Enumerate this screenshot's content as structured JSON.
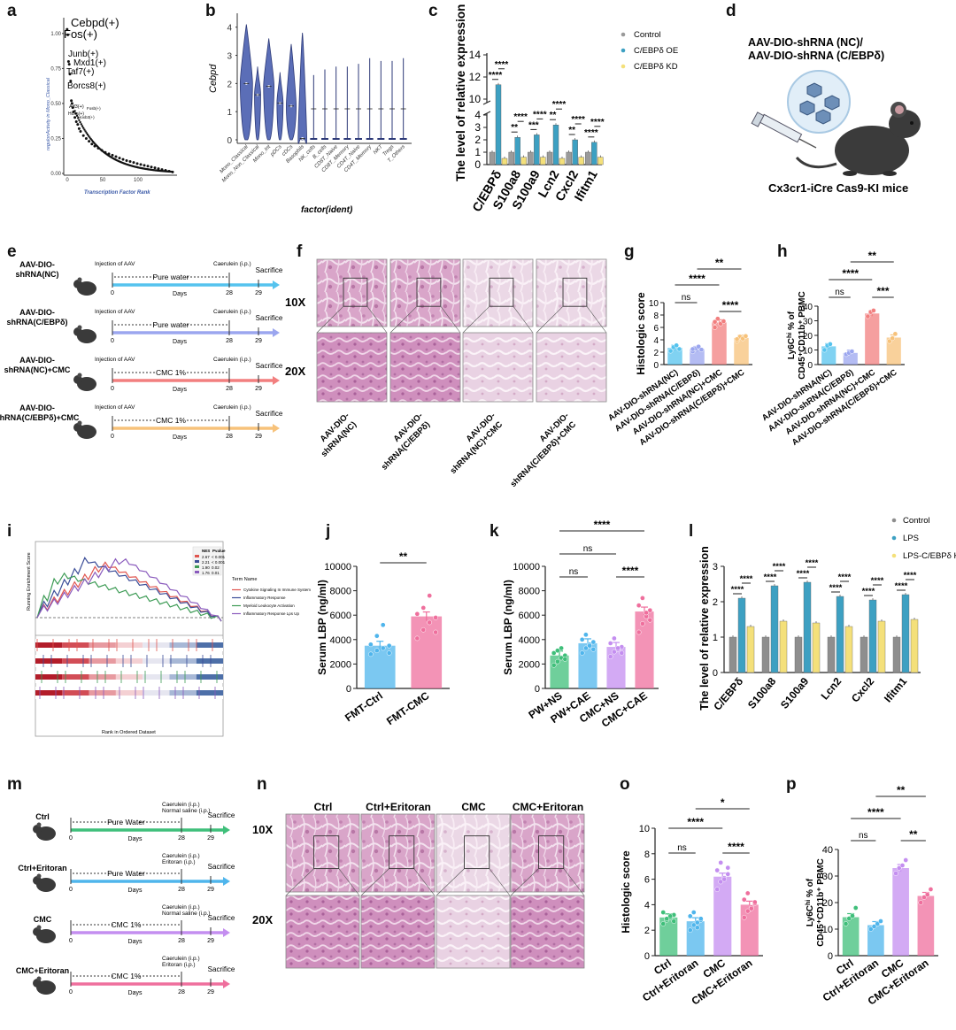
{
  "colors": {
    "nc": "#55c3ee",
    "ko": "#9ba6ef",
    "nc_cmc": "#f27f7f",
    "ko_cmc": "#f7c27a",
    "ctrl_green": "#3fbf7a",
    "purple": "#c48ef0",
    "pink": "#ef6f9d",
    "blue": "#4fb5ec",
    "grey": "#9a9a9a",
    "teal": "#3da0c2",
    "yellow": "#f4e07a",
    "navy": "#3b4d98"
  },
  "panels": {
    "a": "a",
    "b": "b",
    "c": "c",
    "d": "d",
    "e": "e",
    "f": "f",
    "g": "g",
    "h": "h",
    "i": "i",
    "j": "j",
    "k": "k",
    "l": "l",
    "m": "m",
    "n": "n",
    "o": "o",
    "p": "p"
  },
  "a": {
    "ylabel": "regulonActivity in Mono_Classical",
    "xlabel": "Transcription Factor Rank",
    "yticks": [
      "0.00",
      "0.25",
      "0.50",
      "0.75",
      "1.00"
    ],
    "xticks": [
      "0",
      "50",
      "100"
    ],
    "labels": [
      "Cebpd(+)",
      "Fos(+)",
      "Junb(+)",
      "Mxd1(+)",
      "Taf7(+)",
      "Borcs8(+)"
    ],
    "small_labels": [
      "Atf3(+)",
      "Fosb(+)",
      "Hoxa(+)",
      "Hoxb3(+)"
    ],
    "chart_data": {
      "type": "scatter",
      "title": "",
      "xlabel": "Transcription Factor Rank",
      "ylabel": "regulonActivity in Mono_Classical",
      "xlim": [
        0,
        160
      ],
      "ylim": [
        0,
        1.1
      ],
      "points": [
        [
          1,
          1.03
        ],
        [
          2,
          0.99
        ],
        [
          3,
          0.8
        ],
        [
          4,
          0.78
        ],
        [
          5,
          0.71
        ],
        [
          6,
          0.66
        ],
        [
          7,
          0.52
        ],
        [
          8,
          0.5
        ],
        [
          9,
          0.47
        ],
        [
          10,
          0.44
        ],
        [
          12,
          0.4
        ],
        [
          14,
          0.37
        ],
        [
          16,
          0.35
        ],
        [
          18,
          0.32
        ],
        [
          20,
          0.3
        ],
        [
          24,
          0.27
        ],
        [
          28,
          0.25
        ],
        [
          32,
          0.23
        ],
        [
          36,
          0.21
        ],
        [
          40,
          0.195
        ],
        [
          45,
          0.18
        ],
        [
          50,
          0.165
        ],
        [
          55,
          0.15
        ],
        [
          60,
          0.14
        ],
        [
          65,
          0.13
        ],
        [
          70,
          0.12
        ],
        [
          75,
          0.11
        ],
        [
          80,
          0.1
        ],
        [
          85,
          0.092
        ],
        [
          90,
          0.085
        ],
        [
          95,
          0.078
        ],
        [
          100,
          0.07
        ],
        [
          105,
          0.064
        ],
        [
          110,
          0.058
        ],
        [
          115,
          0.052
        ],
        [
          120,
          0.046
        ],
        [
          125,
          0.04
        ],
        [
          130,
          0.034
        ],
        [
          135,
          0.028
        ],
        [
          140,
          0.022
        ],
        [
          145,
          0.016
        ],
        [
          150,
          0.01
        ]
      ]
    }
  },
  "b": {
    "ylabel": "Cebpd",
    "xlabel": "factor(ident)",
    "yticks": [
      "0",
      "1",
      "2",
      "3",
      "4"
    ],
    "categories": [
      "Mono_Classical",
      "Mono_Non_Classical",
      "Mono_Int",
      "pDCs",
      "cDCs",
      "Basophils",
      "NK_cells",
      "B_cells",
      "CD8T_Naive",
      "CD8T_Memory",
      "CD4T_Naive",
      "CD4T_Memory",
      "NKT",
      "Tregs",
      "T_Others"
    ],
    "chart_data": {
      "type": "violin",
      "title": "",
      "xlabel": "factor(ident)",
      "ylabel": "Cebpd",
      "ylim": [
        0,
        4.4
      ],
      "categories": [
        "Mono_Classical",
        "Mono_Non_Classical",
        "Mono_Int",
        "pDCs",
        "cDCs",
        "Basophils",
        "NK_cells",
        "B_cells",
        "CD8T_Naive",
        "CD8T_Memory",
        "CD4T_Naive",
        "CD4T_Memory",
        "NKT",
        "Tregs",
        "T_Others"
      ],
      "max": [
        4.1,
        2.6,
        3.6,
        2.4,
        3.4,
        3.8,
        2.3,
        2.5,
        2.6,
        2.6,
        2.7,
        2.9,
        2.8,
        2.8,
        2.9
      ],
      "median": [
        2.0,
        1.6,
        1.9,
        1.3,
        1.2,
        0.05,
        0,
        0,
        0,
        0,
        0,
        0,
        0,
        0,
        0
      ],
      "width": [
        1,
        0.5,
        0.85,
        0.5,
        0.8,
        0.7,
        0.15,
        0.12,
        0.1,
        0.1,
        0.1,
        0.1,
        0.1,
        0.1,
        0.1
      ]
    }
  },
  "c": {
    "ylabel": "The level of relative expression",
    "legend": [
      "Control",
      "C/EBPδ OE",
      "C/EBPδ KD"
    ],
    "categories": [
      "C/EBPδ",
      "S100a8",
      "S100a9",
      "Lcn2",
      "Cxcl2",
      "Ifitm1"
    ],
    "yticks": [
      "0",
      "1",
      "2",
      "3",
      "4",
      "10",
      "12",
      "14"
    ],
    "sig": [
      "****",
      "****",
      "**",
      "****",
      "***",
      "****",
      "**",
      "****",
      "**",
      "****",
      "****",
      "****"
    ],
    "chart_data": {
      "type": "bar",
      "title": "",
      "ylabel": "The level of relative expression",
      "categories": [
        "C/EBPδ",
        "S100a8",
        "S100a9",
        "Lcn2",
        "Cxcl2",
        "Ifitm1"
      ],
      "ylim_low": [
        0,
        4
      ],
      "ylim_high": [
        10,
        14
      ],
      "series": [
        {
          "name": "Control",
          "values": [
            1,
            1,
            1,
            1,
            1,
            1
          ]
        },
        {
          "name": "C/EBPδ OE",
          "values": [
            11.3,
            2.2,
            2.4,
            3.2,
            2.0,
            1.8
          ]
        },
        {
          "name": "C/EBPδ KD",
          "values": [
            0.5,
            0.6,
            0.6,
            0.5,
            0.6,
            0.6
          ]
        }
      ]
    }
  },
  "d": {
    "title_line1": "AAV-DIO-shRNA (NC)/",
    "title_line2": "AAV-DIO-shRNA (C/EBPδ)",
    "caption": "Cx3cr1-iCre Cas9-KI mice"
  },
  "e": {
    "rows": [
      {
        "name": "AAV-DIO-\nshRNA(NC)",
        "name1": "AAV-DIO-",
        "name2": "shRNA(NC)",
        "inj": "Injection of AAV",
        "treat": "Pure water",
        "cae": "Caerulein (i.p.)",
        "sac": "Sacrifice",
        "days": "Days",
        "d0": "0",
        "d28": "28",
        "d29": "29"
      },
      {
        "name1": "AAV-DIO-",
        "name2": "shRNA(C/EBPδ)",
        "inj": "Injection of AAV",
        "treat": "Pure water",
        "cae": "Caerulein (i.p.)",
        "sac": "Sacrifice",
        "days": "Days",
        "d0": "0",
        "d28": "28",
        "d29": "29"
      },
      {
        "name1": "AAV-DIO-",
        "name2": "shRNA(NC)+CMC",
        "inj": "Injection of AAV",
        "treat": "CMC 1%",
        "cae": "Caerulein (i.p.)",
        "sac": "Sacrifice",
        "days": "Days",
        "d0": "0",
        "d28": "28",
        "d29": "29"
      },
      {
        "name1": "AAV-DIO-",
        "name2": "shRNA(C/EBPδ)+CMC",
        "inj": "Injection of AAV",
        "treat": "CMC 1%",
        "cae": "Caerulein (i.p.)",
        "sac": "Sacrifice",
        "days": "Days",
        "d0": "0",
        "d28": "28",
        "d29": "29"
      }
    ]
  },
  "f": {
    "mag1": "10X",
    "mag2": "20X",
    "labels": [
      [
        "AAV-DIO-",
        "shRNA(NC)"
      ],
      [
        "AAV-DIO-",
        "shRNA(C/EBPδ)"
      ],
      [
        "AAV-DIO-",
        "shRNA(NC)+CMC"
      ],
      [
        "AAV-DIO-",
        "shRNA(C/EBPδ)+CMC"
      ]
    ]
  },
  "g": {
    "ylabel": "Histologic score",
    "yticks": [
      "0",
      "2",
      "4",
      "6",
      "8",
      "10"
    ],
    "categories": [
      "AAV-DIO-shRNA(NC)",
      "AAV-DIO-shRNA(C/EBPδ)",
      "AAV-DIO-shRNA(NC)+CMC",
      "AAV-DIO-shRNA(C/EBPδ)+CMC"
    ],
    "sig": [
      "**",
      "****",
      "ns",
      "****"
    ],
    "chart_data": {
      "type": "bar",
      "ylabel": "Histologic score",
      "ylim": [
        0,
        10
      ],
      "categories": [
        "AAV-DIO-shRNA(NC)",
        "AAV-DIO-shRNA(C/EBPδ)",
        "AAV-DIO-shRNA(NC)+CMC",
        "AAV-DIO-shRNA(C/EBPδ)+CMC"
      ],
      "values": [
        2.7,
        2.5,
        6.8,
        4.3
      ],
      "points": [
        [
          2.2,
          2.8,
          3.1,
          2.5
        ],
        [
          2.1,
          2.6,
          2.9,
          2.4,
          2.5
        ],
        [
          6.0,
          7.4,
          6.6,
          7.0,
          6.9
        ],
        [
          3.8,
          4.5,
          4.2,
          4.6,
          4.1
        ]
      ]
    }
  },
  "h": {
    "ylabel_line1": "Ly6C",
    "ylabel_sup": "hi",
    "ylabel_rest": " % of",
    "ylabel_line2": "CD45⁺CD11b⁺ PBMC",
    "yticks": [
      "0",
      "10",
      "20",
      "30",
      "40"
    ],
    "categories": [
      "AAV-DIO-shRNA(NC)",
      "AAV-DIO-shRNA(C/EBPδ)",
      "AAV-DIO-shRNA(NC)+CMC",
      "AAV-DIO-shRNA(C/EBPδ)+CMC"
    ],
    "sig": [
      "**",
      "****",
      "ns",
      "***"
    ],
    "chart_data": {
      "type": "bar",
      "ylabel": "Ly6Chi % of CD45+CD11b+ PBMC",
      "ylim": [
        0,
        40
      ],
      "categories": [
        "AAV-DIO-shRNA(NC)",
        "AAV-DIO-shRNA(C/EBPδ)",
        "AAV-DIO-shRNA(NC)+CMC",
        "AAV-DIO-shRNA(C/EBPδ)+CMC"
      ],
      "values": [
        12.5,
        8,
        35,
        18.5
      ],
      "points": [
        [
          10,
          13,
          14
        ],
        [
          7,
          8,
          9
        ],
        [
          33,
          36,
          37
        ],
        [
          16,
          18,
          21
        ]
      ]
    }
  },
  "i": {
    "ylabel": "Running Enrichment Score",
    "xlabel": "Rank in Ordered Dataset",
    "legend_title": "Term Name",
    "terms": [
      "Cytokine Signaling In Immune System",
      "Inflammatory Response",
      "Myeloid Leukocyte Activation",
      "Inflammatory Response Lps Up"
    ],
    "table_head": [
      "NES",
      "Pvalue"
    ],
    "table": [
      [
        "2.67",
        "< 0.001"
      ],
      [
        "2.21",
        "< 0.001"
      ],
      [
        "1.90",
        "0.02"
      ],
      [
        "1.76",
        "0.01"
      ]
    ]
  },
  "j": {
    "ylabel": "Serum LBP (ng/ml)",
    "yticks": [
      "0",
      "2000",
      "4000",
      "6000",
      "8000",
      "10000"
    ],
    "categories": [
      "FMT-Ctrl",
      "FMT-CMC"
    ],
    "sig": [
      "**"
    ],
    "chart_data": {
      "type": "bar",
      "ylabel": "Serum LBP (ng/ml)",
      "ylim": [
        0,
        10000
      ],
      "categories": [
        "FMT-Ctrl",
        "FMT-CMC"
      ],
      "values": [
        3500,
        5900
      ],
      "points": [
        [
          2800,
          3100,
          3300,
          3500,
          3600,
          4300,
          5200,
          2900
        ],
        [
          4100,
          4800,
          5400,
          5800,
          6100,
          6600,
          7600,
          4600
        ]
      ]
    }
  },
  "k": {
    "ylabel": "Serum LBP (ng/ml)",
    "yticks": [
      "0",
      "2000",
      "4000",
      "6000",
      "8000",
      "10000"
    ],
    "categories": [
      "PW+NS",
      "PW+CAE",
      "CMC+NS",
      "CMC+CAE"
    ],
    "sig": [
      "****",
      "ns",
      "ns",
      "****"
    ],
    "chart_data": {
      "type": "bar",
      "ylabel": "Serum LBP (ng/ml)",
      "ylim": [
        0,
        10000
      ],
      "categories": [
        "PW+NS",
        "PW+CAE",
        "CMC+NS",
        "CMC+CAE"
      ],
      "values": [
        2700,
        3700,
        3400,
        6300
      ],
      "points": [
        [
          1900,
          2200,
          2500,
          2700,
          2900,
          3100,
          3300,
          2400
        ],
        [
          2900,
          3300,
          3600,
          3800,
          4000,
          4400,
          3500,
          3200
        ],
        [
          2600,
          3000,
          3200,
          3400,
          3700,
          4100,
          3300,
          2900
        ],
        [
          4600,
          5300,
          5900,
          6400,
          6800,
          7400,
          6200,
          5600
        ]
      ]
    }
  },
  "l": {
    "ylabel": "The level of relative expression",
    "legend": [
      "Control",
      "LPS",
      "LPS-C/EBPδ KD"
    ],
    "categories": [
      "C/EBPδ",
      "S100a8",
      "S100a9",
      "Lcn2",
      "Cxcl2",
      "Ifitm1"
    ],
    "yticks": [
      "0",
      "1",
      "2",
      "3"
    ],
    "sig": "****",
    "chart_data": {
      "type": "bar",
      "ylabel": "The level of relative expression",
      "ylim": [
        0,
        3
      ],
      "categories": [
        "C/EBPδ",
        "S100a8",
        "S100a9",
        "Lcn2",
        "Cxcl2",
        "Ifitm1"
      ],
      "series": [
        {
          "name": "Control",
          "values": [
            1,
            1,
            1,
            1,
            1,
            1
          ]
        },
        {
          "name": "LPS",
          "values": [
            2.1,
            2.45,
            2.55,
            2.15,
            2.05,
            2.2
          ]
        },
        {
          "name": "LPS-C/EBPδ KD",
          "values": [
            1.3,
            1.45,
            1.4,
            1.3,
            1.45,
            1.5
          ]
        }
      ]
    }
  },
  "m": {
    "rows": [
      {
        "name": "Ctrl",
        "treat": "Pure Water",
        "cae1": "Caerulein (i.p.)",
        "cae2": "Normal saline (i.p.)",
        "sac": "Sacrifice",
        "days": "Days",
        "d0": "0",
        "d28": "28",
        "d29": "29"
      },
      {
        "name": "Ctrl+Eritoran",
        "treat": "Pure Water",
        "cae1": "Caerulein (i.p.)",
        "cae2": "Eritoran (i.p.)",
        "sac": "Sacrifice",
        "days": "Days",
        "d0": "0",
        "d28": "28",
        "d29": "29"
      },
      {
        "name": "CMC",
        "treat": "CMC 1%",
        "cae1": "Caerulein (i.p.)",
        "cae2": "Normal saline (i.p.)",
        "sac": "Sacrifice",
        "days": "Days",
        "d0": "0",
        "d28": "28",
        "d29": "29"
      },
      {
        "name": "CMC+Eritoran",
        "treat": "CMC 1%",
        "cae1": "Caerulein (i.p.)",
        "cae2": "Eritoran (i.p.)",
        "sac": "Sacrifice",
        "days": "Days",
        "d0": "0",
        "d28": "28",
        "d29": "29"
      }
    ]
  },
  "n": {
    "mag1": "10X",
    "mag2": "20X",
    "cols": [
      "Ctrl",
      "Ctrl+Eritoran",
      "CMC",
      "CMC+Eritoran"
    ]
  },
  "o": {
    "ylabel": "Histologic score",
    "yticks": [
      "0",
      "2",
      "4",
      "6",
      "8",
      "10"
    ],
    "categories": [
      "Ctrl",
      "Ctrl+Eritoran",
      "CMC",
      "CMC+Eritoran"
    ],
    "sig": [
      "*",
      "****",
      "ns",
      "****"
    ],
    "chart_data": {
      "type": "bar",
      "ylabel": "Histologic score",
      "ylim": [
        0,
        10
      ],
      "categories": [
        "Ctrl",
        "Ctrl+Eritoran",
        "CMC",
        "CMC+Eritoran"
      ],
      "values": [
        3.0,
        2.7,
        6.2,
        4.0
      ],
      "points": [
        [
          2.5,
          2.8,
          3.0,
          3.2,
          3.4,
          2.9,
          3.1,
          2.7
        ],
        [
          2.0,
          2.4,
          2.6,
          2.8,
          3.1,
          3.4,
          2.2,
          2.9
        ],
        [
          5.2,
          5.8,
          6.1,
          6.4,
          6.7,
          7.3,
          6.0,
          6.9
        ],
        [
          3.0,
          3.5,
          3.8,
          4.1,
          4.4,
          4.9,
          3.7,
          4.2
        ]
      ]
    }
  },
  "p": {
    "ylabel_line1": "Ly6C",
    "ylabel_sup": "hi",
    "ylabel_rest": " % of",
    "ylabel_line2": "CD45⁺CD11b⁺ PBMC",
    "yticks": [
      "0",
      "10",
      "20",
      "30",
      "40"
    ],
    "categories": [
      "Ctrl",
      "Ctrl+Eritoran",
      "CMC",
      "CMC+Eritoran"
    ],
    "sig": [
      "**",
      "****",
      "ns",
      "**"
    ],
    "chart_data": {
      "type": "bar",
      "ylabel": "Ly6Chi % of CD45+CD11b+ PBMC",
      "ylim": [
        0,
        40
      ],
      "categories": [
        "Ctrl",
        "Ctrl+Eritoran",
        "CMC",
        "CMC+Eritoran"
      ],
      "values": [
        14.5,
        11.5,
        33,
        22.5
      ],
      "points": [
        [
          12,
          14,
          15,
          18
        ],
        [
          10,
          11,
          12,
          13
        ],
        [
          31,
          33,
          34,
          36
        ],
        [
          20,
          22,
          23,
          25
        ]
      ]
    }
  }
}
